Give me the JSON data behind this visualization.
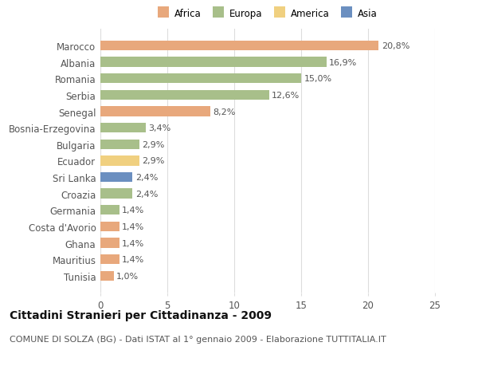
{
  "categories": [
    "Tunisia",
    "Mauritius",
    "Ghana",
    "Costa d'Avorio",
    "Germania",
    "Croazia",
    "Sri Lanka",
    "Ecuador",
    "Bulgaria",
    "Bosnia-Erzegovina",
    "Senegal",
    "Serbia",
    "Romania",
    "Albania",
    "Marocco"
  ],
  "values": [
    1.0,
    1.4,
    1.4,
    1.4,
    1.4,
    2.4,
    2.4,
    2.9,
    2.9,
    3.4,
    8.2,
    12.6,
    15.0,
    16.9,
    20.8
  ],
  "labels": [
    "1,0%",
    "1,4%",
    "1,4%",
    "1,4%",
    "1,4%",
    "2,4%",
    "2,4%",
    "2,9%",
    "2,9%",
    "3,4%",
    "8,2%",
    "12,6%",
    "15,0%",
    "16,9%",
    "20,8%"
  ],
  "continent": [
    "Africa",
    "Africa",
    "Africa",
    "Africa",
    "Europa",
    "Europa",
    "Asia",
    "America",
    "Europa",
    "Europa",
    "Africa",
    "Europa",
    "Europa",
    "Europa",
    "Africa"
  ],
  "colors": {
    "Africa": "#E8A87C",
    "Europa": "#A8BF8A",
    "America": "#F0D080",
    "Asia": "#6B8FC0"
  },
  "legend_order": [
    "Africa",
    "Europa",
    "America",
    "Asia"
  ],
  "xlim": [
    0,
    25
  ],
  "xticks": [
    0,
    5,
    10,
    15,
    20,
    25
  ],
  "title": "Cittadini Stranieri per Cittadinanza - 2009",
  "subtitle": "COMUNE DI SOLZA (BG) - Dati ISTAT al 1° gennaio 2009 - Elaborazione TUTTITALIA.IT",
  "background_color": "#ffffff",
  "bar_height": 0.6,
  "grid_color": "#dddddd",
  "text_color": "#555555",
  "title_fontsize": 10,
  "subtitle_fontsize": 8,
  "tick_fontsize": 8.5,
  "label_fontsize": 8,
  "legend_fontsize": 8.5
}
